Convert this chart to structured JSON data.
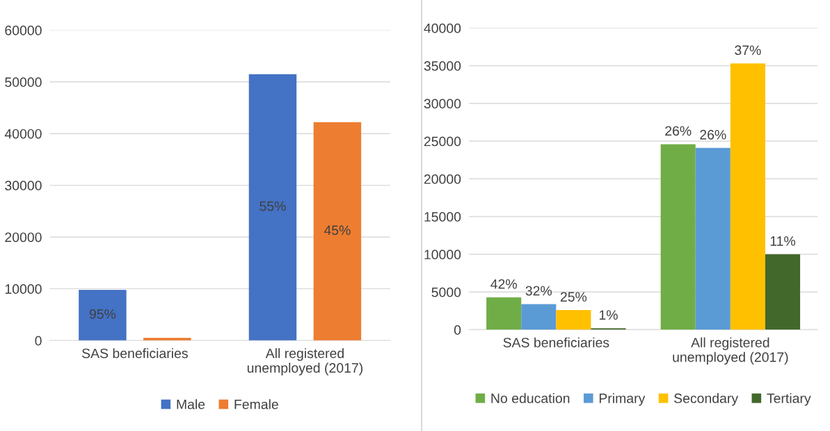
{
  "chart_data": [
    {
      "type": "bar",
      "categories": [
        "SAS beneficiaries",
        "All registered\nunemployed (2017)"
      ],
      "ylim": [
        0,
        60000
      ],
      "yticks": [
        0,
        10000,
        20000,
        30000,
        40000,
        50000,
        60000
      ],
      "grid": "y",
      "legend": "bottom",
      "series": [
        {
          "name": "Male",
          "color": "#4472c4",
          "values": [
            9800,
            51500
          ]
        },
        {
          "name": "Female",
          "color": "#ed7d31",
          "values": [
            500,
            42200
          ]
        }
      ],
      "annotations": [
        "95%",
        "55%",
        "45%"
      ]
    },
    {
      "type": "bar",
      "categories": [
        "SAS beneficiaries",
        "All registered\nunemployed (2017)"
      ],
      "ylim": [
        0,
        40000
      ],
      "yticks": [
        0,
        5000,
        10000,
        15000,
        20000,
        25000,
        30000,
        35000,
        40000
      ],
      "grid": "y",
      "legend": "bottom",
      "series": [
        {
          "name": "No education",
          "color": "#70ad47",
          "values": [
            4300,
            24600
          ]
        },
        {
          "name": "Primary",
          "color": "#5b9bd5",
          "values": [
            3400,
            24100
          ]
        },
        {
          "name": "Secondary",
          "color": "#ffc000",
          "values": [
            2600,
            35300
          ]
        },
        {
          "name": "Tertiary",
          "color": "#43682b",
          "values": [
            200,
            10000
          ]
        }
      ],
      "annotations": [
        "42%",
        "32%",
        "25%",
        "1%",
        "26%",
        "26%",
        "37%",
        "11%"
      ]
    }
  ]
}
